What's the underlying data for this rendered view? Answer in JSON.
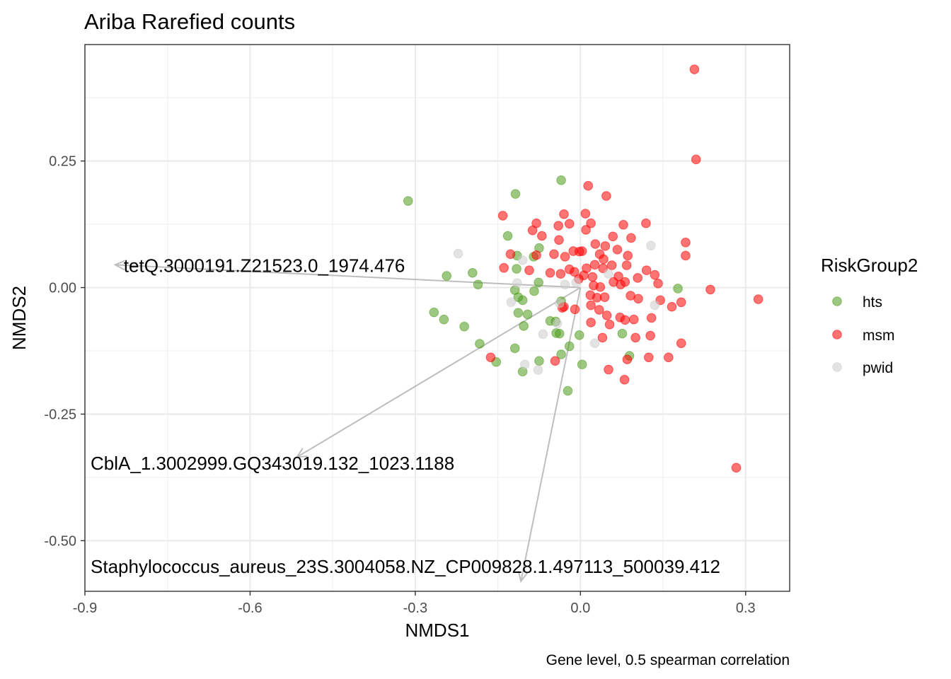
{
  "chart_data": {
    "type": "scatter",
    "title": "Ariba Rarefied counts",
    "xlabel": "NMDS1",
    "ylabel": "NMDS2",
    "caption": "Gene level, 0.5 spearman correlation",
    "xlim": [
      -0.9,
      0.38
    ],
    "ylim": [
      -0.6,
      0.48
    ],
    "x_ticks": [
      -0.9,
      -0.6,
      -0.3,
      0.0,
      0.3
    ],
    "x_tick_labels": [
      "-0.9",
      "-0.6",
      "-0.3",
      "0.0",
      "0.3"
    ],
    "y_ticks": [
      0.25,
      0.0,
      -0.25,
      -0.5
    ],
    "y_tick_labels": [
      "0.25",
      "0.00",
      "-0.25",
      "-0.50"
    ],
    "grid": true,
    "legend": {
      "title": "RiskGroup2",
      "placement": "right"
    },
    "series": [
      {
        "name": "hts",
        "color": "#4d9a1a",
        "points": [
          [
            -0.313,
            0.171
          ],
          [
            -0.118,
            0.185
          ],
          [
            -0.035,
            0.212
          ],
          [
            -0.132,
            0.102
          ],
          [
            -0.115,
            0.063
          ],
          [
            -0.075,
            0.078
          ],
          [
            -0.085,
            0.061
          ],
          [
            -0.243,
            0.023
          ],
          [
            -0.196,
            0.029
          ],
          [
            -0.186,
            0.006
          ],
          [
            -0.116,
            0.037
          ],
          [
            -0.076,
            0.01
          ],
          [
            -0.119,
            -0.005
          ],
          [
            -0.084,
            -0.007
          ],
          [
            -0.113,
            -0.019
          ],
          [
            -0.105,
            -0.025
          ],
          [
            -0.035,
            -0.027
          ],
          [
            -0.266,
            -0.049
          ],
          [
            -0.248,
            -0.063
          ],
          [
            -0.211,
            -0.077
          ],
          [
            -0.113,
            -0.05
          ],
          [
            -0.096,
            -0.053
          ],
          [
            -0.103,
            -0.076
          ],
          [
            -0.055,
            -0.066
          ],
          [
            -0.045,
            -0.067
          ],
          [
            -0.044,
            -0.09
          ],
          [
            -0.038,
            -0.091
          ],
          [
            -0.002,
            -0.094
          ],
          [
            -0.183,
            -0.111
          ],
          [
            -0.119,
            -0.12
          ],
          [
            -0.02,
            -0.116
          ],
          [
            -0.075,
            -0.145
          ],
          [
            -0.035,
            -0.132
          ],
          [
            -0.153,
            -0.147
          ],
          [
            -0.105,
            -0.166
          ],
          [
            0.003,
            -0.152
          ],
          [
            -0.023,
            -0.204
          ],
          [
            0.076,
            -0.091
          ],
          [
            0.089,
            -0.135
          ],
          [
            0.177,
            -0.002
          ]
        ]
      },
      {
        "name": "msm",
        "color": "#ff0000",
        "points": [
          [
            0.207,
            0.431
          ],
          [
            0.21,
            0.253
          ],
          [
            0.014,
            0.201
          ],
          [
            0.047,
            0.181
          ],
          [
            -0.141,
            0.142
          ],
          [
            -0.03,
            0.145
          ],
          [
            0.009,
            0.146
          ],
          [
            -0.08,
            0.127
          ],
          [
            -0.087,
            0.113
          ],
          [
            -0.04,
            0.122
          ],
          [
            -0.02,
            0.126
          ],
          [
            0.019,
            0.127
          ],
          [
            0.078,
            0.124
          ],
          [
            0.119,
            0.127
          ],
          [
            -0.07,
            0.102
          ],
          [
            -0.039,
            0.094
          ],
          [
            0.01,
            0.114
          ],
          [
            0.059,
            0.101
          ],
          [
            0.092,
            0.098
          ],
          [
            -0.127,
            0.066
          ],
          [
            -0.08,
            0.064
          ],
          [
            -0.048,
            0.066
          ],
          [
            -0.028,
            0.061
          ],
          [
            -0.013,
            0.072
          ],
          [
            -0.002,
            0.071
          ],
          [
            0.003,
            0.072
          ],
          [
            0.027,
            0.086
          ],
          [
            0.045,
            0.082
          ],
          [
            0.067,
            0.075
          ],
          [
            0.086,
            0.063
          ],
          [
            0.035,
            0.066
          ],
          [
            0.042,
            0.056
          ],
          [
            0.057,
            0.044
          ],
          [
            -0.139,
            0.039
          ],
          [
            -0.093,
            0.034
          ],
          [
            -0.055,
            0.029
          ],
          [
            -0.036,
            0.027
          ],
          [
            -0.02,
            0.036
          ],
          [
            -0.011,
            0.031
          ],
          [
            0.011,
            0.038
          ],
          [
            0.026,
            0.045
          ],
          [
            0.041,
            0.038
          ],
          [
            0.084,
            0.044
          ],
          [
            0.12,
            0.034
          ],
          [
            0.135,
            0.025
          ],
          [
            -0.003,
            0.017
          ],
          [
            0.006,
            0.024
          ],
          [
            0.022,
            0.021
          ],
          [
            0.069,
            0.022
          ],
          [
            0.081,
            0.011
          ],
          [
            0.104,
            0.019
          ],
          [
            0.141,
            0.008
          ],
          [
            0.024,
            0.004
          ],
          [
            0.036,
            0.001
          ],
          [
            0.06,
            0.011
          ],
          [
            0.073,
            0.006
          ],
          [
            0.018,
            -0.015
          ],
          [
            0.03,
            -0.02
          ],
          [
            0.044,
            -0.019
          ],
          [
            0.091,
            -0.016
          ],
          [
            0.105,
            -0.022
          ],
          [
            0.145,
            -0.025
          ],
          [
            0.183,
            -0.029
          ],
          [
            0.236,
            -0.004
          ],
          [
            0.323,
            -0.023
          ],
          [
            -0.03,
            -0.038
          ],
          [
            -0.01,
            -0.043
          ],
          [
            0.019,
            -0.035
          ],
          [
            0.034,
            -0.044
          ],
          [
            0.048,
            -0.055
          ],
          [
            0.072,
            -0.059
          ],
          [
            0.097,
            -0.063
          ],
          [
            0.129,
            -0.06
          ],
          [
            0.166,
            -0.038
          ],
          [
            0.019,
            -0.069
          ],
          [
            0.053,
            -0.073
          ],
          [
            0.081,
            -0.064
          ],
          [
            -0.046,
            -0.145
          ],
          [
            0.04,
            -0.099
          ],
          [
            0.1,
            -0.099
          ],
          [
            0.127,
            -0.095
          ],
          [
            0.183,
            -0.11
          ],
          [
            0.191,
            0.089
          ],
          [
            0.191,
            0.063
          ],
          [
            -0.163,
            -0.138
          ],
          [
            0.051,
            -0.162
          ],
          [
            0.08,
            -0.182
          ],
          [
            0.085,
            -0.142
          ],
          [
            0.124,
            -0.138
          ],
          [
            0.16,
            -0.138
          ],
          [
            0.283,
            -0.356
          ],
          [
            -0.033,
            -0.04
          ]
        ]
      },
      {
        "name": "pwid",
        "color": "#cccccc",
        "points": [
          [
            -0.222,
            0.067
          ],
          [
            -0.105,
            0.054
          ],
          [
            0.128,
            0.083
          ],
          [
            0.051,
            0.027
          ],
          [
            -0.115,
            0.009
          ],
          [
            -0.028,
            0.006
          ],
          [
            -0.126,
            -0.029
          ],
          [
            -0.038,
            -0.031
          ],
          [
            -0.068,
            -0.092
          ],
          [
            -0.042,
            -0.071
          ],
          [
            0.026,
            -0.11
          ],
          [
            -0.101,
            -0.152
          ],
          [
            -0.077,
            -0.163
          ],
          [
            0.135,
            -0.035
          ],
          [
            -0.008,
            0.01
          ]
        ]
      }
    ],
    "vectors": [
      {
        "label": "tetQ.3000191.Z21523.0_1974.476",
        "x": -0.845,
        "y": 0.045
      },
      {
        "label": "CblA_1.3002999.GQ343019.132_1023.1188",
        "x": -0.515,
        "y": -0.335
      },
      {
        "label": "Staphylococcus_aureus_23S.3004058.NZ_CP009828.1.497113_500039.412",
        "x": -0.108,
        "y": -0.58
      }
    ]
  }
}
